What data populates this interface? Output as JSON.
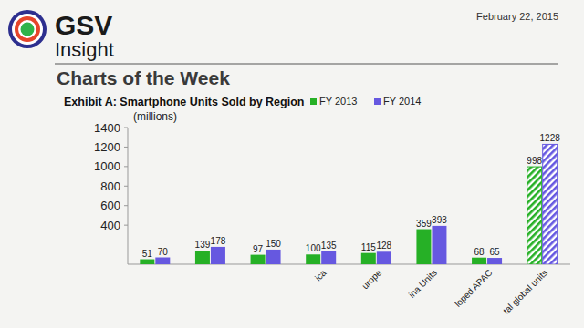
{
  "header": {
    "brand": "GSV",
    "brand_sub": "Insight",
    "date": "February 22, 2015",
    "heading": "Charts of the Week"
  },
  "chart_data": {
    "type": "bar",
    "title": "Exhibit A: Smartphone Units Sold by Region",
    "y_label": "(millions)",
    "categories": [
      null,
      null,
      null,
      "ica",
      "urope",
      "ina Units",
      "loped APAC",
      "tal global units"
    ],
    "series": [
      {
        "name": "FY 2013",
        "color": "#26b026",
        "values": [
          51,
          139,
          97,
          100,
          115,
          359,
          68,
          998
        ]
      },
      {
        "name": "FY 2014",
        "color": "#6658e0",
        "values": [
          70,
          178,
          150,
          135,
          128,
          393,
          65,
          1228
        ]
      }
    ],
    "ylim": [
      0,
      1400
    ],
    "yticks": [
      400,
      600,
      800,
      1000,
      1200,
      1400
    ],
    "grid": false,
    "legend": "top",
    "data_labels": true
  }
}
